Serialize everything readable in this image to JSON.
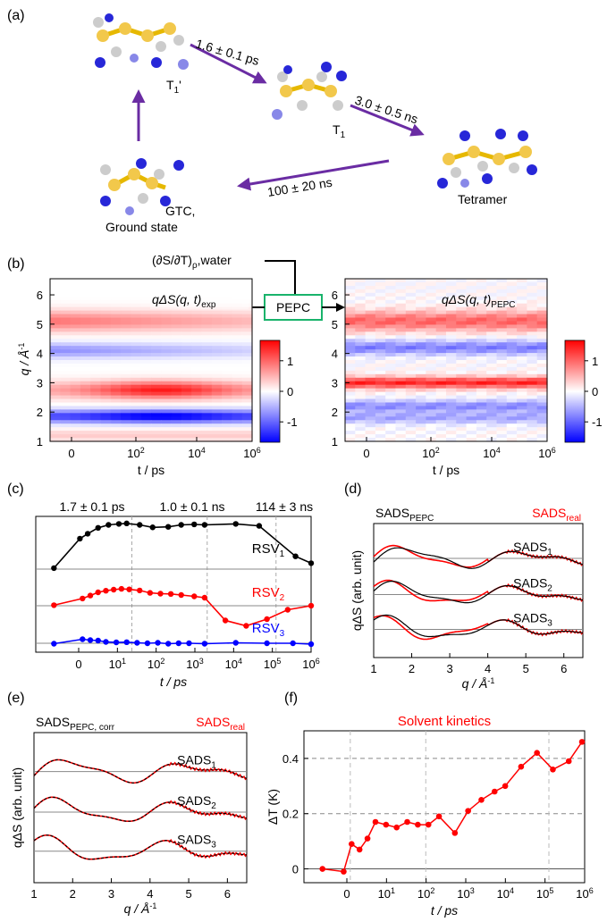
{
  "panel_labels": {
    "a": "(a)",
    "b": "(b)",
    "c": "(c)",
    "d": "(d)",
    "e": "(e)",
    "f": "(f)"
  },
  "scheme": {
    "t1p_label": "T",
    "t1p_sub": "1",
    "t1p_prime": "'",
    "t1_label": "T",
    "t1_sub": "1",
    "tetramer_label": "Tetramer",
    "gtc_line1": "GTC,",
    "gtc_line2": "Ground state",
    "arrow1": "1.6 ± 0.1 ps",
    "arrow2": "3.0 ± 0.5 ns",
    "arrow3": "100 ± 20 ns"
  },
  "panel_b": {
    "water_label_pre": "(∂S/∂T)",
    "water_label_sub": "ρ",
    "water_label_post": ",water",
    "pepc_box": "PEPC",
    "map1_title_main": "qΔS(q, t)",
    "map1_title_sub": "exp",
    "map2_title_main": "qΔS(q, t)",
    "map2_title_sub": "PEPC",
    "ylabel": "q / Å",
    "ylabel_sup": "-1",
    "xlabel": "t / ps",
    "yticks": [
      "1",
      "2",
      "3",
      "4",
      "5",
      "6"
    ],
    "xticks": [
      {
        "base": "0",
        "exp": ""
      },
      {
        "base": "10",
        "exp": "2"
      },
      {
        "base": "10",
        "exp": "4"
      },
      {
        "base": "10",
        "exp": "6"
      }
    ],
    "colorbar_ticks": [
      "1",
      "0",
      "-1"
    ],
    "colors": {
      "neg": "#0000ff",
      "mid": "#ffffff",
      "pos": "#ff0000"
    }
  },
  "chart_data": [
    {
      "panel": "c",
      "type": "line",
      "xlabel": "t / ps",
      "x_scale": "symlog",
      "xticks": [
        "0",
        "10^1",
        "10^2",
        "10^3",
        "10^4",
        "10^5",
        "10^6"
      ],
      "annotations": [
        "1.7 ± 0.1 ps",
        "1.0 ± 0.1 ns",
        "114 ± 3 ns"
      ],
      "series": [
        {
          "name": "RSV1",
          "color": "#000000",
          "x": [
            -0.8,
            0.2,
            0.5,
            0.9,
            1.3,
            1.7,
            2.0,
            2.5,
            3.0,
            3.6,
            4.1,
            4.6,
            5.0,
            6.2,
            7.1,
            8.5,
            9.1
          ],
          "values": [
            0.02,
            0.62,
            0.72,
            0.84,
            0.9,
            0.92,
            0.93,
            0.9,
            0.85,
            0.86,
            0.9,
            0.91,
            0.9,
            0.92,
            0.88,
            0.26,
            0.12
          ]
        },
        {
          "name": "RSV2",
          "color": "#ff0000",
          "x": [
            -0.8,
            0.3,
            0.6,
            0.9,
            1.2,
            1.5,
            1.8,
            2.1,
            2.5,
            2.9,
            3.3,
            3.7,
            4.1,
            4.6,
            5.0,
            5.8,
            6.6,
            7.4,
            8.2,
            9.1
          ],
          "values": [
            0.02,
            0.27,
            0.38,
            0.5,
            0.56,
            0.6,
            0.63,
            0.61,
            0.57,
            0.48,
            0.45,
            0.44,
            0.4,
            0.35,
            0.3,
            -0.55,
            -0.75,
            -0.5,
            -0.15,
            0.0
          ]
        },
        {
          "name": "RSV3",
          "color": "#0000ff",
          "x": [
            -0.8,
            0.3,
            0.6,
            0.9,
            1.2,
            1.6,
            2.0,
            2.4,
            2.8,
            3.2,
            3.6,
            4.0,
            4.4,
            5.0,
            6.2,
            7.4,
            8.4,
            9.1
          ],
          "values": [
            -0.05,
            0.45,
            0.35,
            0.3,
            0.15,
            0.1,
            0.12,
            0.05,
            0.0,
            0.05,
            -0.05,
            0.0,
            0.0,
            -0.05,
            0.05,
            0.0,
            0.0,
            -0.1
          ]
        }
      ]
    },
    {
      "panel": "d",
      "type": "line",
      "title_left": "SADS",
      "title_left_sub": "PEPC",
      "title_right": "SADS",
      "title_right_sub": "real",
      "xlabel": "q / Å",
      "xlabel_sup": "-1",
      "ylabel": "qΔS (arb. unit)",
      "xlim": [
        1,
        6.5
      ],
      "xticks": [
        "1",
        "2",
        "3",
        "4",
        "5",
        "6"
      ],
      "curve_labels": [
        {
          "main": "SADS",
          "sub": "1"
        },
        {
          "main": "SADS",
          "sub": "2"
        },
        {
          "main": "SADS",
          "sub": "3"
        }
      ]
    },
    {
      "panel": "e",
      "type": "line",
      "title_left": "SADS",
      "title_left_sub": "PEPC, corr",
      "title_right": "SADS",
      "title_right_sub": "real",
      "xlabel": "q / Å",
      "xlabel_sup": "-1",
      "ylabel": "qΔS (arb. unit)",
      "xlim": [
        1,
        6.5
      ],
      "xticks": [
        "1",
        "2",
        "3",
        "4",
        "5",
        "6"
      ],
      "curve_labels": [
        {
          "main": "SADS",
          "sub": "1"
        },
        {
          "main": "SADS",
          "sub": "2"
        },
        {
          "main": "SADS",
          "sub": "3"
        }
      ]
    },
    {
      "panel": "f",
      "type": "line",
      "title": "Solvent kinetics",
      "xlabel": "t / ps",
      "ylabel": "ΔT (K)",
      "ylim": [
        -0.05,
        0.5
      ],
      "yticks": [
        "0",
        "0.2",
        "0.4"
      ],
      "xticks": [
        "0",
        "10^1",
        "10^2",
        "10^3",
        "10^4",
        "10^5",
        "10^6"
      ],
      "series": [
        {
          "name": "ΔT",
          "color": "#ff0000",
          "x": [
            -0.8,
            0.0,
            0.3,
            0.6,
            0.9,
            1.2,
            1.6,
            2.0,
            2.4,
            2.8,
            3.2,
            3.6,
            4.2,
            4.7,
            5.2,
            5.7,
            6.1,
            6.7,
            7.3,
            7.9,
            8.5,
            9.0
          ],
          "y": [
            0.0,
            -0.01,
            0.09,
            0.07,
            0.11,
            0.17,
            0.16,
            0.15,
            0.17,
            0.16,
            0.16,
            0.19,
            0.13,
            0.21,
            0.25,
            0.28,
            0.3,
            0.37,
            0.42,
            0.36,
            0.39,
            0.46
          ]
        }
      ]
    }
  ]
}
